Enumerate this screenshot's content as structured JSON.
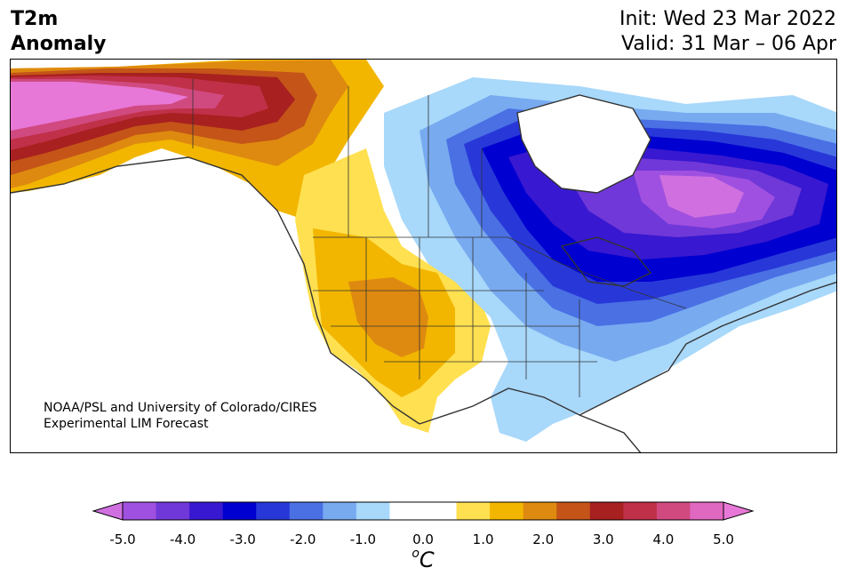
{
  "title": {
    "left_line1": "T2m",
    "left_line2": "Anomaly",
    "init": "Init: Wed 23 Mar 2022",
    "valid": "Valid: 31 Mar – 06 Apr"
  },
  "credit": {
    "line1": "NOAA/PSL and University of Colorado/CIRES",
    "line2": "Experimental LIM Forecast"
  },
  "colorbar": {
    "unit_base": "C",
    "unit_sup": "o",
    "tick_labels": [
      "-5.0",
      "-4.0",
      "-3.0",
      "-2.0",
      "-1.0",
      "0.0",
      "1.0",
      "2.0",
      "3.0",
      "4.0",
      "5.0"
    ],
    "colors": [
      "#a050e0",
      "#7038d8",
      "#3818d0",
      "#0000d0",
      "#2838d8",
      "#4a70e4",
      "#78aaf0",
      "#a8d8fa",
      "#ffffff",
      "#ffffff",
      "#ffe050",
      "#f2b600",
      "#de8a10",
      "#c45418",
      "#a82020",
      "#c03048",
      "#d04a80",
      "#e068c0"
    ],
    "under_color": "#d070e0",
    "over_color": "#e878d8"
  },
  "map": {
    "region": "North America",
    "variable": "2m temperature anomaly"
  }
}
